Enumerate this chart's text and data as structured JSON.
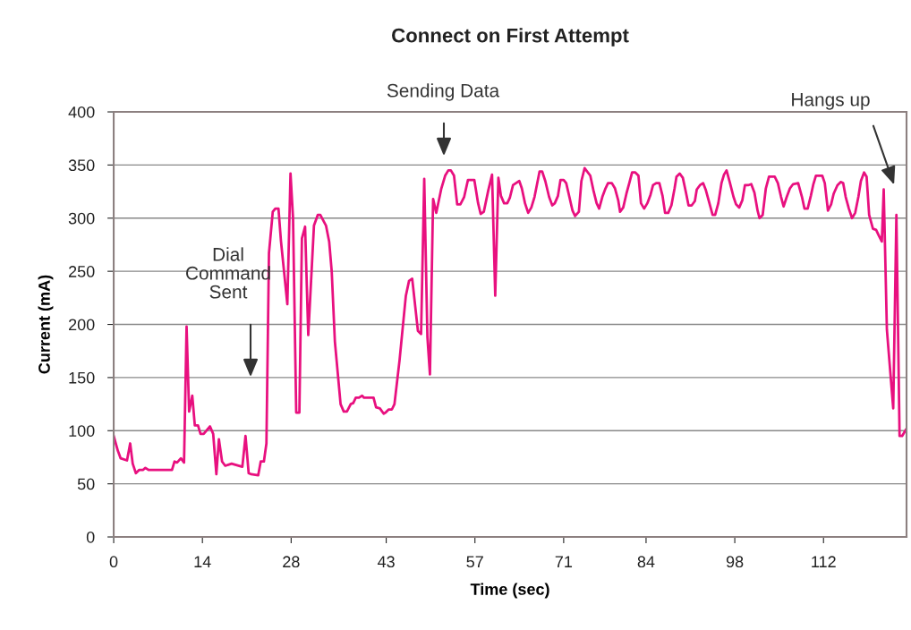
{
  "chart_data": {
    "type": "line",
    "title": "Connect on First Attempt",
    "xlabel": "Time (sec)",
    "ylabel": "Current (mA)",
    "xlim": [
      0,
      125.1
    ],
    "ylim": [
      0,
      400
    ],
    "xticks": [
      0,
      14,
      28,
      43,
      57,
      71,
      84,
      98,
      112
    ],
    "yticks": [
      0,
      50,
      100,
      150,
      200,
      250,
      300,
      350,
      400
    ],
    "grid": "y",
    "marker": "none",
    "line_style": "solid",
    "series": [
      {
        "color": "#e8107f",
        "x": [
          0,
          0.66,
          1.1,
          2.1,
          2.6,
          3.0,
          3.5,
          4.0,
          4.6,
          5.0,
          5.5,
          9.2,
          9.6,
          10.0,
          10.6,
          11.1,
          11.5,
          11.9,
          12.4,
          12.8,
          13.3,
          13.7,
          14.2,
          15.2,
          15.7,
          16.2,
          16.6,
          17.1,
          17.6,
          18.6,
          20.3,
          20.8,
          21.3,
          21.7,
          22.8,
          23.2,
          23.7,
          24.1,
          24.5,
          25.1,
          25.5,
          26.0,
          26.4,
          27.4,
          27.9,
          28.3,
          28.8,
          29.3,
          29.7,
          30.2,
          30.7,
          31.6,
          32.2,
          32.6,
          33.5,
          34.0,
          34.4,
          34.9,
          35.8,
          36.3,
          36.8,
          37.4,
          37.8,
          38.2,
          38.7,
          39.2,
          39.5,
          41.0,
          41.4,
          42.0,
          42.6,
          42.9,
          43.4,
          43.9,
          44.3,
          45.1,
          46.1,
          46.6,
          47.1,
          48.0,
          48.5,
          49.0,
          49.5,
          49.9,
          50.4,
          50.9,
          51.7,
          52.3,
          52.8,
          53.2,
          53.7,
          54.2,
          54.7,
          55.3,
          55.9,
          56.9,
          57.5,
          57.9,
          58.4,
          59.1,
          59.7,
          60.2,
          60.7,
          61.1,
          61.6,
          62.1,
          62.5,
          63.0,
          64.0,
          64.4,
          64.9,
          65.4,
          65.9,
          66.4,
          67.2,
          67.6,
          68.1,
          68.7,
          69.2,
          69.6,
          70.1,
          70.5,
          71.0,
          71.4,
          71.9,
          72.4,
          72.8,
          73.4,
          73.8,
          74.3,
          75.2,
          75.7,
          76.2,
          76.6,
          77.1,
          77.6,
          78.0,
          78.6,
          79.1,
          79.6,
          79.9,
          80.4,
          80.9,
          81.4,
          81.8,
          82.3,
          82.8,
          83.2,
          83.7,
          84.2,
          84.7,
          85.1,
          85.6,
          86.1,
          86.6,
          87.0,
          87.5,
          88.0,
          88.5,
          88.8,
          89.3,
          89.8,
          90.3,
          90.7,
          91.2,
          91.7,
          92.0,
          92.5,
          93.0,
          93.4,
          94.0,
          94.5,
          94.9,
          95.4,
          95.9,
          96.3,
          96.7,
          97.2,
          97.8,
          98.2,
          98.7,
          99.2,
          99.6,
          100.1,
          100.6,
          101.1,
          101.6,
          101.9,
          102.4,
          102.9,
          103.4,
          104.3,
          104.8,
          105.3,
          105.7,
          106.2,
          106.7,
          107.2,
          108.0,
          108.6,
          109.0,
          109.5,
          110.0,
          110.4,
          110.8,
          111.8,
          112.2,
          112.7,
          113.2,
          113.6,
          114.2,
          114.7,
          115.1,
          115.5,
          116.0,
          116.5,
          117.0,
          117.5,
          117.9,
          118.4,
          118.8,
          119.2,
          119.8,
          120.3,
          120.7,
          121.2,
          121.5,
          122.0,
          123.0,
          123.5,
          124.0,
          124.4,
          125.0
        ],
        "values": [
          95,
          81,
          74,
          72,
          88,
          69,
          60,
          63,
          63,
          65,
          63,
          63,
          71,
          70,
          74,
          70,
          198,
          118,
          133,
          105,
          105,
          97,
          97,
          104,
          97,
          59,
          92,
          71,
          67,
          69,
          66,
          95,
          60,
          59,
          58,
          71,
          71,
          88,
          267,
          306,
          309,
          309,
          278,
          219,
          342,
          300,
          117,
          117,
          281,
          292,
          190,
          293,
          303,
          303,
          293,
          278,
          250,
          184,
          125,
          118,
          118,
          125,
          126,
          131,
          131,
          133,
          131,
          131,
          122,
          121,
          116,
          117,
          120,
          120,
          125,
          166,
          227,
          241,
          243,
          194,
          191,
          337,
          188,
          153,
          318,
          305,
          328,
          340,
          345,
          345,
          340,
          313,
          313,
          320,
          336,
          336,
          314,
          304,
          306,
          326,
          341,
          227,
          338,
          321,
          314,
          314,
          319,
          331,
          335,
          328,
          314,
          305,
          310,
          320,
          344,
          344,
          335,
          320,
          312,
          314,
          321,
          336,
          336,
          333,
          320,
          307,
          302,
          306,
          335,
          347,
          340,
          326,
          314,
          309,
          320,
          328,
          333,
          333,
          328,
          317,
          306,
          310,
          323,
          334,
          343,
          343,
          340,
          314,
          309,
          314,
          322,
          331,
          333,
          333,
          321,
          305,
          305,
          312,
          328,
          339,
          342,
          338,
          324,
          312,
          312,
          316,
          327,
          331,
          333,
          327,
          314,
          303,
          303,
          314,
          333,
          341,
          345,
          334,
          320,
          313,
          310,
          317,
          331,
          331,
          332,
          324,
          307,
          300,
          303,
          328,
          339,
          339,
          333,
          320,
          311,
          320,
          328,
          332,
          333,
          320,
          309,
          309,
          321,
          332,
          340,
          340,
          333,
          307,
          313,
          323,
          331,
          334,
          333,
          320,
          309,
          300,
          305,
          320,
          335,
          343,
          339,
          303,
          290,
          289,
          284,
          278,
          327,
          195,
          121,
          303,
          95,
          95,
          101
        ]
      }
    ],
    "annotations": [
      "Dial\nCommand\nSent",
      "Sending Data",
      "Hangs up"
    ]
  }
}
